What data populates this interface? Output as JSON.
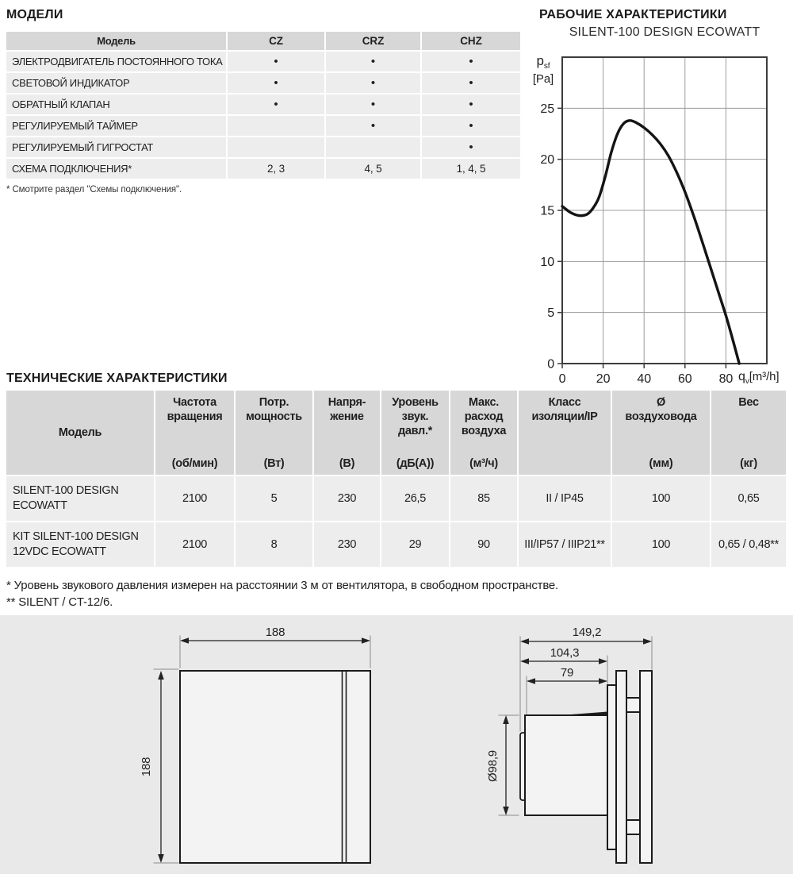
{
  "sections": {
    "models_title": "МОДЕЛИ",
    "performance_title": "РАБОЧИЕ ХАРАКТЕРИСТИКИ",
    "tech_title": "ТЕХНИЧЕСКИЕ ХАРАКТЕРИСТИКИ"
  },
  "models_table": {
    "headers": {
      "model": "Модель",
      "cz": "CZ",
      "crz": "CRZ",
      "chz": "CHZ"
    },
    "rows": [
      {
        "label": "ЭЛЕКТРОДВИГАТЕЛЬ ПОСТОЯННОГО ТОКА",
        "cz": "•",
        "crz": "•",
        "chz": "•"
      },
      {
        "label": "СВЕТОВОЙ ИНДИКАТОР",
        "cz": "•",
        "crz": "•",
        "chz": "•"
      },
      {
        "label": "ОБРАТНЫЙ КЛАПАН",
        "cz": "•",
        "crz": "•",
        "chz": "•"
      },
      {
        "label": "РЕГУЛИРУЕМЫЙ ТАЙМЕР",
        "cz": "",
        "crz": "•",
        "chz": "•"
      },
      {
        "label": "РЕГУЛИРУЕМЫЙ ГИГРОСТАТ",
        "cz": "",
        "crz": "",
        "chz": "•"
      },
      {
        "label": "СХЕМА ПОДКЛЮЧЕНИЯ*",
        "cz": "2, 3",
        "crz": "4, 5",
        "chz": "1, 4, 5"
      }
    ],
    "footnote": "* Смотрите раздел \"Схемы подключения\"."
  },
  "chart_data": {
    "type": "line",
    "title": "SILENT-100 DESIGN ECOWATT",
    "xlabel": "qv [m³/h]",
    "ylabel": "psf [Pa]",
    "y_axis": {
      "symbol": "p",
      "sub": "sf",
      "unit": "[Pa]"
    },
    "x_axis": {
      "symbol": "q",
      "sub": "v",
      "unit": "[m³/h]"
    },
    "xlim": [
      0,
      100
    ],
    "ylim": [
      0,
      30
    ],
    "x_ticks": [
      0,
      20,
      40,
      60,
      80
    ],
    "y_ticks": [
      0,
      5,
      10,
      15,
      20,
      25
    ],
    "grid": true,
    "series": [
      {
        "name": "SILENT-100 DESIGN ECOWATT",
        "points": [
          [
            0,
            15.4
          ],
          [
            4,
            14.8
          ],
          [
            8,
            14.5
          ],
          [
            12,
            14.6
          ],
          [
            15,
            15.2
          ],
          [
            18,
            16.3
          ],
          [
            21,
            18.3
          ],
          [
            24,
            20.7
          ],
          [
            27,
            22.5
          ],
          [
            30,
            23.5
          ],
          [
            33,
            23.8
          ],
          [
            36,
            23.6
          ],
          [
            40,
            23.1
          ],
          [
            44,
            22.4
          ],
          [
            48,
            21.5
          ],
          [
            52,
            20.3
          ],
          [
            56,
            18.7
          ],
          [
            60,
            16.8
          ],
          [
            64,
            14.6
          ],
          [
            68,
            12.2
          ],
          [
            72,
            9.7
          ],
          [
            76,
            7.2
          ],
          [
            80,
            4.7
          ],
          [
            83,
            2.6
          ],
          [
            86.5,
            0
          ]
        ]
      }
    ]
  },
  "tech_table": {
    "columns": [
      {
        "label": "Модель",
        "unit": ""
      },
      {
        "label": "Частота\nвращения",
        "unit": "(об/мин)"
      },
      {
        "label": "Потр.\nмощность",
        "unit": "(Вт)"
      },
      {
        "label": "Напря-\nжение",
        "unit": "(В)"
      },
      {
        "label": "Уровень\nзвук.\nдавл.*",
        "unit": "(дБ(А))"
      },
      {
        "label": "Макс.\nрасход\nвоздуха",
        "unit": "(м³/ч)"
      },
      {
        "label": "Класс\nизоляции/IP",
        "unit": ""
      },
      {
        "label": "Ø\nвоздуховода",
        "unit": "(мм)"
      },
      {
        "label": "Вес",
        "unit": "(кг)"
      }
    ],
    "rows": [
      {
        "model": "SILENT-100 DESIGN\nECOWATT",
        "cells": [
          "2100",
          "5",
          "230",
          "26,5",
          "85",
          "II / IP45",
          "100",
          "0,65"
        ]
      },
      {
        "model": "KIT SILENT-100 DESIGN\n12VDC ECOWATT",
        "cells": [
          "2100",
          "8",
          "230",
          "29",
          "90",
          "III/IP57 / IIIP21**",
          "100",
          "0,65 / 0,48**"
        ]
      }
    ],
    "footnote1": "* Уровень звукового давления измерен на расстоянии 3 м от вентилятора, в свободном пространстве.",
    "footnote2": "** SILENT / CT-12/6."
  },
  "drawings": {
    "front": {
      "width": "188",
      "height": "188"
    },
    "side": {
      "total_depth": "149,2",
      "duct_to_plate": "104,3",
      "duct_length": "79",
      "diameter": "Ø98,9"
    }
  }
}
